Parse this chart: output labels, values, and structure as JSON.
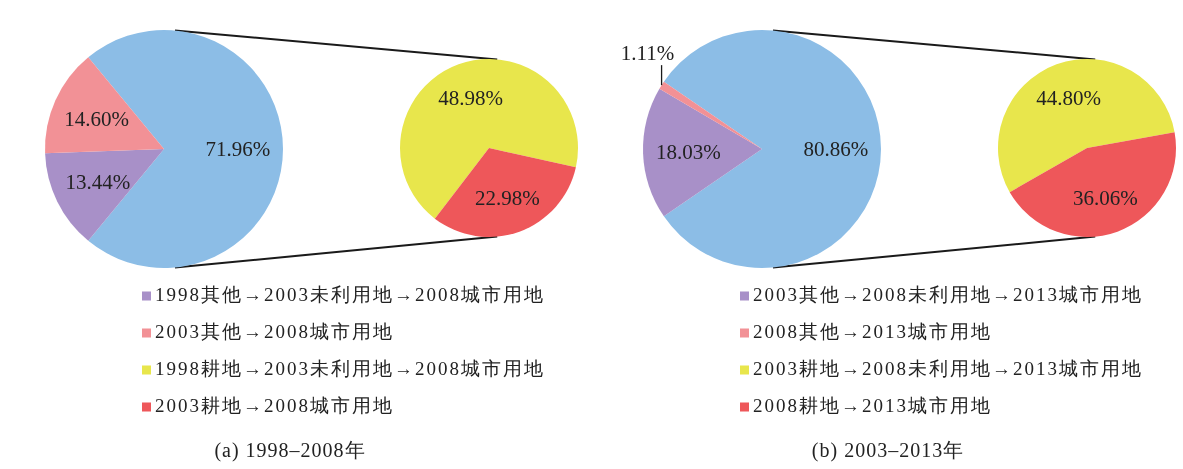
{
  "chart_data": [
    {
      "type": "pie",
      "title": "(a) 1998–2008年",
      "categories": [
        null,
        "1998其他→2003未利用地→2008城市用地",
        "2003其他→2008城市用地"
      ],
      "values": [
        71.96,
        13.44,
        14.6
      ],
      "colors": [
        "#8cbde6",
        "#a890c8",
        "#f29196"
      ],
      "value_labels": [
        "71.96%",
        "13.44%",
        "14.60%"
      ],
      "legend": "bottom"
    },
    {
      "type": "pie",
      "categories": [
        "1998耕地→2003未利用地→2008城市用地",
        "2003耕地→2008城市用地"
      ],
      "values": [
        48.98,
        22.98
      ],
      "colors": [
        "#e8e64c",
        "#ee575a"
      ],
      "value_labels": [
        "48.98%",
        "22.98%"
      ],
      "legend": "bottom left"
    },
    {
      "type": "pie",
      "title": "(b) 2003–2013年",
      "categories": [
        null,
        "2003其他→2008未利用地→2013城市用地",
        "2008其他→2013城市用地"
      ],
      "values": [
        80.86,
        18.03,
        1.11
      ],
      "colors": [
        "#8cbde6",
        "#a890c8",
        "#f29196"
      ],
      "value_labels": [
        "80.86%",
        "18.03%",
        "1.11%"
      ],
      "legend": "bottom"
    },
    {
      "type": "pie",
      "categories": [
        "2003耕地→2008未利用地→2013城市用地",
        "2008耕地→2013城市用地"
      ],
      "values": [
        44.8,
        36.06
      ],
      "colors": [
        "#e8e64c",
        "#ee575a"
      ],
      "value_labels": [
        "44.80%",
        "36.06%"
      ],
      "legend": "bottom left"
    }
  ]
}
